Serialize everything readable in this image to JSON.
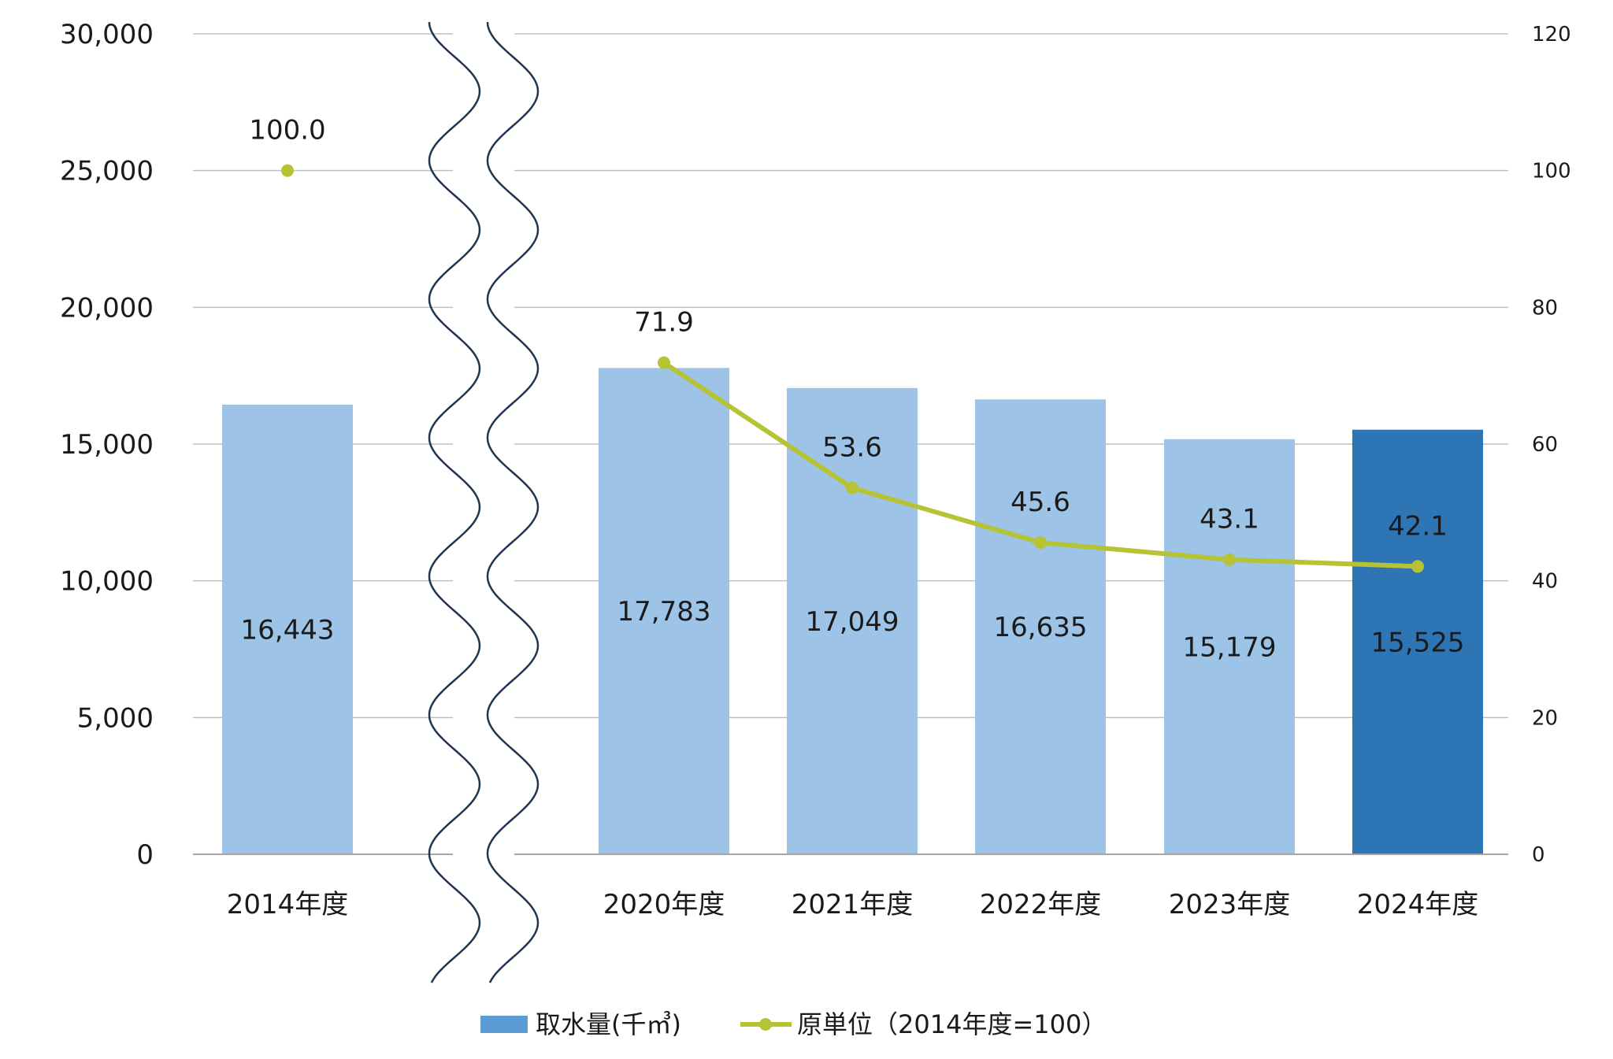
{
  "chart_data": {
    "type": "bar",
    "categories": [
      "2014年度",
      "2020年度",
      "2021年度",
      "2022年度",
      "2023年度",
      "2024年度"
    ],
    "axis_break_after_index": 0,
    "series": [
      {
        "name": "取水量(千㎥)",
        "type": "bar",
        "axis": "left",
        "values": [
          16443,
          17783,
          17049,
          16635,
          15179,
          15525
        ],
        "labels": [
          "16,443",
          "17,783",
          "17,049",
          "16,635",
          "15,179",
          "15,525"
        ],
        "highlight_index": 5
      },
      {
        "name": "原単位（2014年度=100）",
        "type": "line",
        "axis": "right",
        "values": [
          100.0,
          71.9,
          53.6,
          45.6,
          43.1,
          42.1
        ],
        "labels": [
          "100.0",
          "71.9",
          "53.6",
          "45.6",
          "43.1",
          "42.1"
        ],
        "connected_from_index": 1
      }
    ],
    "y_left": {
      "lim": [
        0,
        30000
      ],
      "ticks": [
        0,
        5000,
        10000,
        15000,
        20000,
        25000,
        30000
      ],
      "tick_labels": [
        "0",
        "5,000",
        "10,000",
        "15,000",
        "20,000",
        "25,000",
        "30,000"
      ]
    },
    "y_right": {
      "lim": [
        0,
        120
      ],
      "ticks": [
        0,
        20,
        40,
        60,
        80,
        100,
        120
      ],
      "tick_labels": [
        "0",
        "20",
        "40",
        "60",
        "80",
        "100",
        "120"
      ]
    },
    "grid": true,
    "legend_position": "bottom-center",
    "colors": {
      "bar": "#9dc3e6",
      "bar_highlight": "#2e75b6",
      "legend_bar": "#5b9bd5",
      "line": "#b5c334",
      "grid": "#bfbfbf",
      "axis": "#a6a6a6",
      "break_line": "#1f3552"
    }
  }
}
